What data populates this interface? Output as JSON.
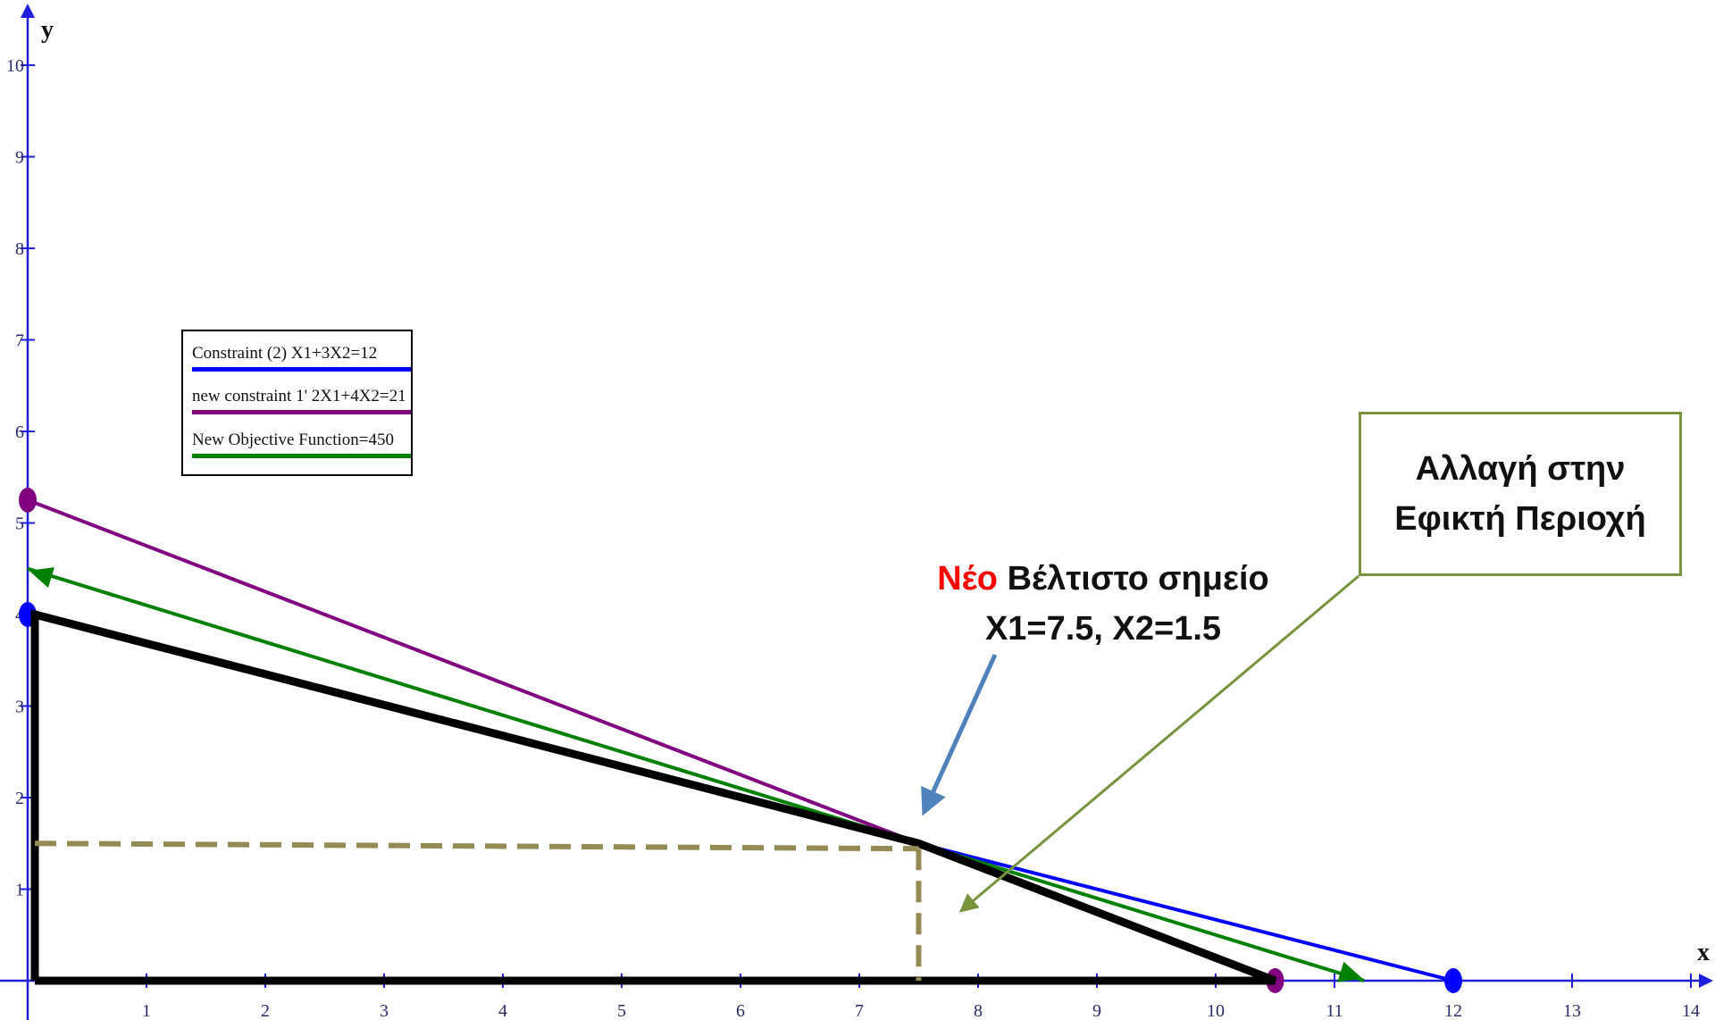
{
  "chart_data": {
    "type": "line",
    "xlabel": "x",
    "ylabel": "y",
    "xlim": [
      0,
      14.4
    ],
    "ylim": [
      0,
      10.7
    ],
    "x_ticks": [
      1,
      2,
      3,
      4,
      5,
      6,
      7,
      8,
      9,
      10,
      11,
      12,
      13,
      14
    ],
    "y_ticks": [
      1,
      2,
      3,
      4,
      5,
      6,
      7,
      8,
      9,
      10
    ],
    "grid": false,
    "legend_position": "upper-left",
    "series": [
      {
        "name": "Constraint (2) X1+3X2=12",
        "color": "#0000ff",
        "x": [
          0,
          12
        ],
        "y": [
          4,
          0
        ]
      },
      {
        "name": "new constraint 1' 2X1+4X2=21",
        "color": "#800080",
        "x": [
          0,
          10.5
        ],
        "y": [
          5.25,
          0
        ]
      },
      {
        "name": "New Objective Function=450",
        "color": "#008000",
        "x": [
          0,
          11.25
        ],
        "y": [
          4.5,
          0
        ]
      }
    ],
    "feasible_region": {
      "color": "#000000",
      "x": [
        0,
        0,
        7.5,
        10.5,
        0
      ],
      "y": [
        0,
        4,
        1.5,
        0,
        0
      ]
    },
    "optimum": {
      "x": 7.5,
      "y": 1.5,
      "guide_color": "#948a54"
    },
    "annotations": {
      "optimum_red": "Νέο",
      "optimum_line1": "Βέλτιστο σημείο",
      "optimum_line2": "X1=7.5, X2=1.5",
      "region_line1": "Αλλαγή στην",
      "region_line2": "Εφικτή Περιοχή"
    },
    "annotation_colors": {
      "optimum_arrow": "#4f81bd",
      "region_arrow": "#77933c"
    }
  }
}
